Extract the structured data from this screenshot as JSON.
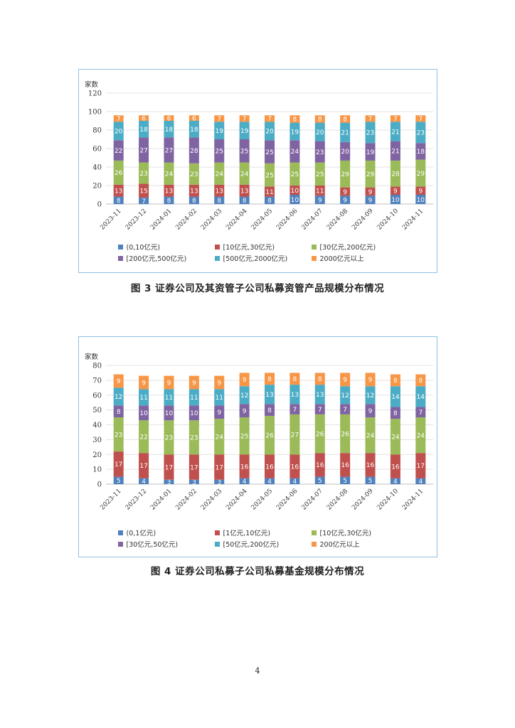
{
  "page": {
    "number": "4"
  },
  "figures": [
    {
      "caption": "图 3   证券公司及其资管子公司私募资管产品规模分布情况"
    },
    {
      "caption": "图 4   证券公司私募子公司私募基金规模分布情况"
    }
  ],
  "chart_data": [
    {
      "type": "bar",
      "stacked": true,
      "ylabel": "家数",
      "ylim": [
        0,
        120
      ],
      "ytick_step": 20,
      "grid": true,
      "legend_position": "bottom",
      "categories": [
        "2023-11",
        "2023-12",
        "2024-01",
        "2024-02",
        "2024-03",
        "2024-04",
        "2024-05",
        "2024-06",
        "2024-07",
        "2024-08",
        "2024-09",
        "2024-10",
        "2024-11"
      ],
      "series": [
        {
          "name": "(0,10亿元)",
          "color": "#4f81bd",
          "values": [
            8,
            7,
            8,
            8,
            8,
            8,
            8,
            10,
            9,
            9,
            9,
            10,
            10
          ]
        },
        {
          "name": "[10亿元,30亿元)",
          "color": "#c0504d",
          "values": [
            13,
            15,
            13,
            13,
            13,
            13,
            11,
            10,
            11,
            9,
            9,
            9,
            9
          ]
        },
        {
          "name": "[30亿元,200亿元)",
          "color": "#9bbb59",
          "values": [
            26,
            23,
            24,
            23,
            24,
            24,
            25,
            25,
            25,
            29,
            29,
            28,
            29
          ]
        },
        {
          "name": "[200亿元,500亿元)",
          "color": "#8064a2",
          "values": [
            22,
            27,
            27,
            28,
            25,
            25,
            25,
            24,
            23,
            20,
            19,
            21,
            18
          ]
        },
        {
          "name": "[500亿元,2000亿元)",
          "color": "#4bacc6",
          "values": [
            20,
            18,
            18,
            18,
            19,
            19,
            20,
            19,
            20,
            21,
            23,
            21,
            23
          ]
        },
        {
          "name": "2000亿元以上",
          "color": "#f79646",
          "values": [
            7,
            6,
            6,
            6,
            7,
            7,
            7,
            8,
            8,
            8,
            7,
            7,
            7
          ]
        }
      ]
    },
    {
      "type": "bar",
      "stacked": true,
      "ylabel": "家数",
      "ylim": [
        0,
        80
      ],
      "ytick_step": 10,
      "grid": true,
      "legend_position": "bottom",
      "categories": [
        "2023-11",
        "2023-12",
        "2024-01",
        "2024-02",
        "2024-03",
        "2024-04",
        "2024-05",
        "2024-06",
        "2024-07",
        "2024-08",
        "2024-09",
        "2024-10",
        "2024-11"
      ],
      "series": [
        {
          "name": "(0,1亿元)",
          "color": "#4f81bd",
          "values": [
            5,
            4,
            3,
            3,
            3,
            4,
            4,
            4,
            5,
            5,
            5,
            4,
            4
          ]
        },
        {
          "name": "[1亿元,10亿元)",
          "color": "#c0504d",
          "values": [
            17,
            17,
            17,
            17,
            17,
            16,
            16,
            16,
            16,
            16,
            16,
            16,
            17
          ]
        },
        {
          "name": "[10亿元,30亿元)",
          "color": "#9bbb59",
          "values": [
            23,
            22,
            23,
            23,
            24,
            25,
            26,
            27,
            26,
            26,
            24,
            24,
            24
          ]
        },
        {
          "name": "[30亿元,50亿元)",
          "color": "#8064a2",
          "values": [
            8,
            10,
            10,
            10,
            9,
            9,
            8,
            7,
            7,
            7,
            9,
            8,
            7
          ]
        },
        {
          "name": "[50亿元,200亿元)",
          "color": "#4bacc6",
          "values": [
            12,
            11,
            11,
            11,
            11,
            12,
            13,
            13,
            13,
            12,
            12,
            14,
            14
          ]
        },
        {
          "name": "200亿元以上",
          "color": "#f79646",
          "values": [
            9,
            9,
            9,
            9,
            9,
            9,
            8,
            8,
            8,
            9,
            9,
            8,
            8
          ]
        }
      ]
    }
  ]
}
